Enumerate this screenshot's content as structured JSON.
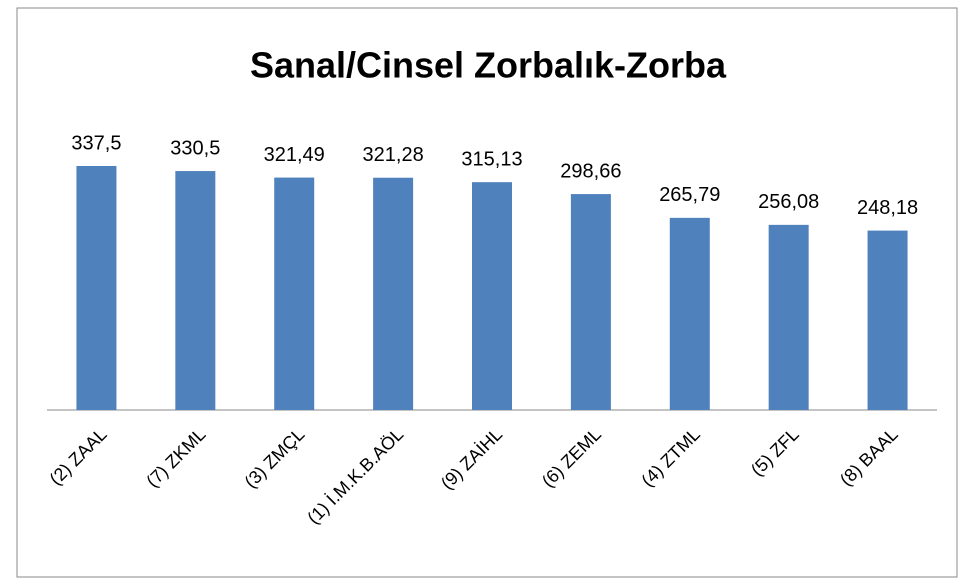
{
  "chart_data": {
    "type": "bar",
    "title": "Sanal/Cinsel Zorbalık-Zorba",
    "categories": [
      "(2) ZAAL",
      "(7) ZKML",
      "(3) ZMÇL",
      "(1) İ.M.K.B.AÖL",
      "(9) ZAİHL",
      "(6) ZEML",
      "(4) ZTML",
      "(5) ZFL",
      "(8) BAAL"
    ],
    "values": [
      337.5,
      330.5,
      321.49,
      321.28,
      315.13,
      298.66,
      265.79,
      256.08,
      248.18
    ],
    "value_labels": [
      "337,5",
      "330,5",
      "321,49",
      "321,28",
      "315,13",
      "298,66",
      "265,79",
      "256,08",
      "248,18"
    ],
    "color": "#4f81bd"
  }
}
